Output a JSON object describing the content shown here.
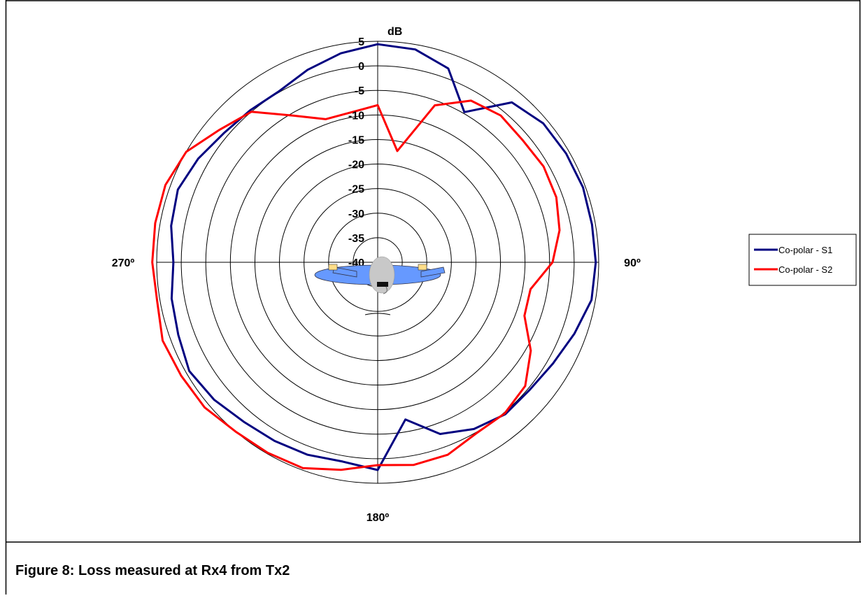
{
  "chart_data": {
    "type": "polar-line",
    "radial_unit": "dB",
    "caption": "Figure 8: Loss measured at Rx4 from Tx2",
    "theta": [
      0,
      10,
      20,
      30,
      40,
      50,
      60,
      70,
      80,
      90,
      100,
      110,
      120,
      130,
      140,
      150,
      160,
      170,
      180,
      190,
      200,
      210,
      220,
      230,
      240,
      250,
      260,
      270,
      280,
      290,
      300,
      310,
      320,
      330,
      340,
      350
    ],
    "series": [
      {
        "name": "Co-polar - S1",
        "color": "#000080",
        "values": [
          4.4,
          4,
          2,
          -4.7,
          2.5,
          4,
          4.3,
          4.5,
          4.3,
          4.4,
          4.2,
          2.6,
          1.2,
          0.4,
          0.4,
          -0.8,
          -2.8,
          -7.5,
          2.3,
          1.2,
          1.7,
          2,
          2.4,
          3.5,
          4.3,
          3.2,
          2.6,
          1.6,
          2.7,
          3.3,
          2.2,
          0.9,
          0.4,
          0.2,
          1.7,
          3.2
        ]
      },
      {
        "name": "Co-polar - S2",
        "color": "#ff0000",
        "values": [
          -8,
          -17,
          -6,
          -2,
          -1,
          -1.4,
          -1,
          -1.3,
          -2.4,
          -4.4,
          -8.4,
          -8.2,
          -4,
          -0.8,
          0.2,
          0.2,
          1.7,
          1.9,
          1.3,
          2.9,
          4.6,
          4.8,
          5,
          6,
          6.2,
          6.6,
          5.6,
          5.9,
          6,
          6,
          5,
          2,
          0,
          -5.5,
          -9,
          -9
        ]
      }
    ],
    "rlim": [
      -40,
      5
    ],
    "rticks": [
      5,
      0,
      -5,
      -10,
      -15,
      -20,
      -25,
      -30,
      -35,
      -40
    ],
    "thetaticks": [
      {
        "value": 90,
        "label": "90º"
      },
      {
        "value": 180,
        "label": "180º"
      },
      {
        "value": 270,
        "label": "270º"
      }
    ]
  }
}
